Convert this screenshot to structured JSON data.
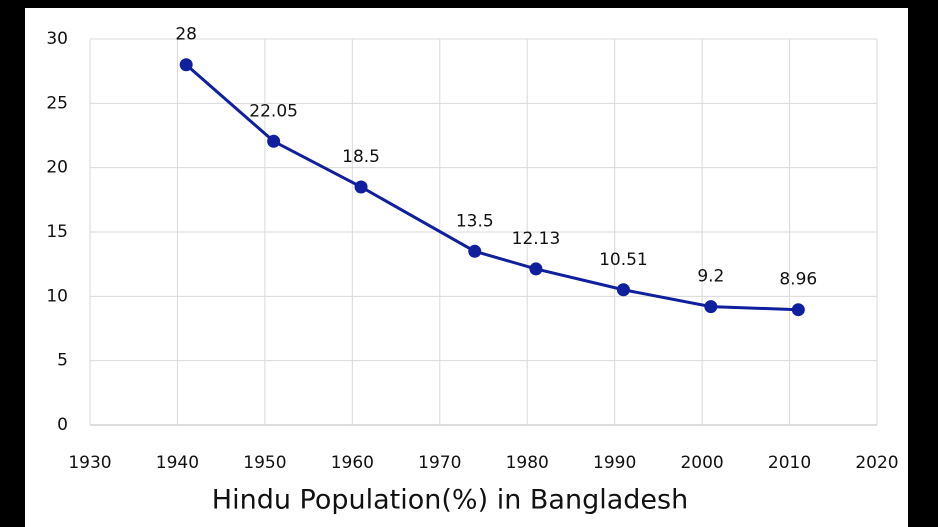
{
  "chart_data": {
    "type": "line",
    "title": "Hindu Population(%) in Bangladesh",
    "x": [
      1941,
      1951,
      1961,
      1974,
      1981,
      1991,
      2001,
      2011
    ],
    "values": [
      28,
      22.05,
      18.5,
      13.5,
      12.13,
      10.51,
      9.2,
      8.96
    ],
    "color": "#0f1f9e",
    "xlim": [
      1930,
      2020
    ],
    "xticks": [
      1930,
      1940,
      1950,
      1960,
      1970,
      1980,
      1990,
      2000,
      2010,
      2020
    ],
    "ylim": [
      0,
      30
    ],
    "yticks": [
      0,
      5,
      10,
      15,
      20,
      25,
      30
    ],
    "grid": true
  }
}
